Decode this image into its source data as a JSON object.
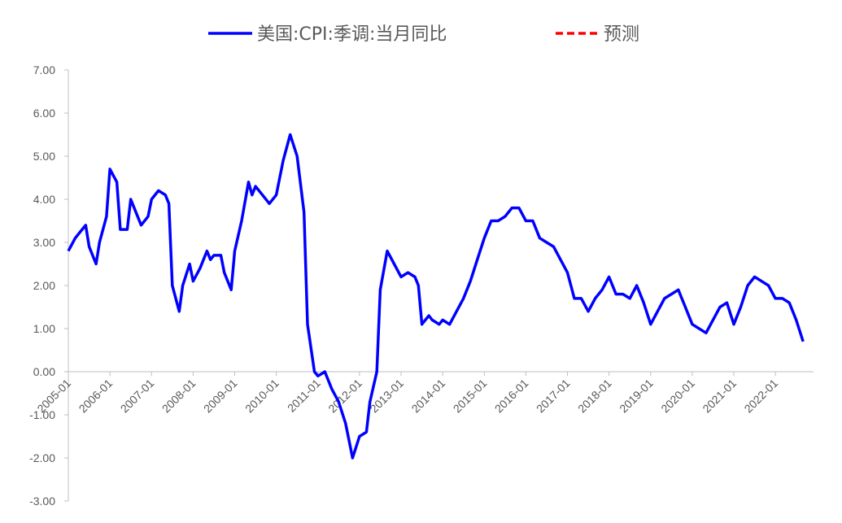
{
  "chart_data": {
    "type": "line",
    "ylim": [
      -3,
      7
    ],
    "yticks": [
      "7.00",
      "6.00",
      "5.00",
      "4.00",
      "3.00",
      "2.00",
      "1.00",
      "0.00",
      "-1.00",
      "-2.00",
      "-3.00"
    ],
    "xticks": [
      "2005-01",
      "2006-01",
      "2007-01",
      "2008-01",
      "2009-01",
      "2010-01",
      "2011-01",
      "2012-01",
      "2013-01",
      "2014-01",
      "2015-01",
      "2016-01",
      "2017-01",
      "2018-01",
      "2019-01",
      "2020-01",
      "2021-01",
      "2022-01"
    ],
    "x_start": "2005-01",
    "x_end": "2022-12",
    "legend_position": "top",
    "series": [
      {
        "name": "美国:CPI:季调:当月同比",
        "color": "#0000ff",
        "style": "solid",
        "points": [
          [
            "2005-01",
            2.8
          ],
          [
            "2005-03",
            3.1
          ],
          [
            "2005-05",
            3.3
          ],
          [
            "2005-06",
            3.4
          ],
          [
            "2005-07",
            2.9
          ],
          [
            "2005-09",
            2.5
          ],
          [
            "2005-10",
            3.0
          ],
          [
            "2005-12",
            3.6
          ],
          [
            "2006-01",
            4.7
          ],
          [
            "2006-03",
            4.4
          ],
          [
            "2006-04",
            3.3
          ],
          [
            "2006-06",
            3.3
          ],
          [
            "2006-07",
            4.0
          ],
          [
            "2006-09",
            3.6
          ],
          [
            "2006-10",
            3.4
          ],
          [
            "2006-12",
            3.6
          ],
          [
            "2007-01",
            4.0
          ],
          [
            "2007-03",
            4.2
          ],
          [
            "2007-05",
            4.1
          ],
          [
            "2007-06",
            3.9
          ],
          [
            "2007-07",
            2.0
          ],
          [
            "2007-09",
            1.4
          ],
          [
            "2007-10",
            2.0
          ],
          [
            "2007-12",
            2.5
          ],
          [
            "2008-01",
            2.1
          ],
          [
            "2008-03",
            2.4
          ],
          [
            "2008-05",
            2.8
          ],
          [
            "2008-06",
            2.6
          ],
          [
            "2008-07",
            2.7
          ],
          [
            "2008-09",
            2.7
          ],
          [
            "2008-10",
            2.3
          ],
          [
            "2008-12",
            1.9
          ],
          [
            "2009-01",
            2.8
          ],
          [
            "2009-03",
            3.5
          ],
          [
            "2009-05",
            4.4
          ],
          [
            "2009-06",
            4.1
          ],
          [
            "2009-07",
            4.3
          ],
          [
            "2009-09",
            4.1
          ],
          [
            "2009-11",
            3.9
          ],
          [
            "2010-01",
            4.1
          ],
          [
            "2010-03",
            4.9
          ],
          [
            "2010-05",
            5.5
          ],
          [
            "2010-07",
            5.0
          ],
          [
            "2010-09",
            3.7
          ],
          [
            "2010-10",
            1.1
          ],
          [
            "2010-12",
            0.0
          ],
          [
            "2011-01",
            -0.1
          ],
          [
            "2011-03",
            0.0
          ],
          [
            "2011-05",
            -0.4
          ],
          [
            "2011-07",
            -0.7
          ],
          [
            "2011-09",
            -1.2
          ],
          [
            "2011-11",
            -2.0
          ],
          [
            "2012-01",
            -1.5
          ],
          [
            "2012-03",
            -1.4
          ],
          [
            "2012-04",
            -0.7
          ],
          [
            "2012-06",
            0.0
          ],
          [
            "2012-07",
            1.9
          ],
          [
            "2012-09",
            2.8
          ],
          [
            "2012-11",
            2.5
          ],
          [
            "2013-01",
            2.2
          ],
          [
            "2013-03",
            2.3
          ],
          [
            "2013-05",
            2.2
          ],
          [
            "2013-06",
            2.0
          ],
          [
            "2013-07",
            1.1
          ],
          [
            "2013-09",
            1.3
          ],
          [
            "2013-10",
            1.2
          ],
          [
            "2013-12",
            1.1
          ],
          [
            "2014-01",
            1.2
          ],
          [
            "2014-03",
            1.1
          ],
          [
            "2014-05",
            1.4
          ],
          [
            "2014-07",
            1.7
          ],
          [
            "2014-09",
            2.1
          ],
          [
            "2014-11",
            2.6
          ],
          [
            "2015-01",
            3.1
          ],
          [
            "2015-03",
            3.5
          ],
          [
            "2015-05",
            3.5
          ],
          [
            "2015-07",
            3.6
          ],
          [
            "2015-09",
            3.8
          ],
          [
            "2015-11",
            3.8
          ],
          [
            "2016-01",
            3.5
          ],
          [
            "2016-03",
            3.5
          ],
          [
            "2016-05",
            3.1
          ],
          [
            "2016-07",
            3.0
          ],
          [
            "2016-09",
            2.9
          ],
          [
            "2016-11",
            2.6
          ],
          [
            "2017-01",
            2.3
          ],
          [
            "2017-03",
            1.7
          ],
          [
            "2017-05",
            1.7
          ],
          [
            "2017-07",
            1.4
          ],
          [
            "2017-09",
            1.7
          ],
          [
            "2017-11",
            1.9
          ],
          [
            "2018-01",
            2.2
          ],
          [
            "2018-03",
            1.8
          ],
          [
            "2018-05",
            1.8
          ],
          [
            "2018-07",
            1.7
          ],
          [
            "2018-09",
            2.0
          ],
          [
            "2018-11",
            1.6
          ],
          [
            "2019-01",
            1.1
          ],
          [
            "2019-03",
            1.4
          ],
          [
            "2019-05",
            1.7
          ],
          [
            "2019-07",
            1.8
          ],
          [
            "2019-09",
            1.9
          ],
          [
            "2019-11",
            1.5
          ],
          [
            "2020-01",
            1.1
          ],
          [
            "2020-03",
            1.0
          ],
          [
            "2020-05",
            0.9
          ],
          [
            "2020-07",
            1.2
          ],
          [
            "2020-09",
            1.5
          ],
          [
            "2020-11",
            1.6
          ],
          [
            "2021-01",
            1.1
          ],
          [
            "2021-03",
            1.5
          ],
          [
            "2021-05",
            2.0
          ],
          [
            "2021-07",
            2.2
          ],
          [
            "2021-09",
            2.1
          ],
          [
            "2021-11",
            2.0
          ],
          [
            "2022-01",
            1.7
          ],
          [
            "2022-03",
            1.7
          ],
          [
            "2022-05",
            1.6
          ],
          [
            "2022-07",
            1.2
          ],
          [
            "2022-09",
            0.7
          ]
        ]
      }
    ]
  },
  "legend": [
    {
      "label": "美国:CPI:季调:当月同比",
      "color": "#0000ff",
      "style": "solid"
    },
    {
      "label": "预测",
      "color": "#ff0000",
      "style": "dashed"
    }
  ]
}
